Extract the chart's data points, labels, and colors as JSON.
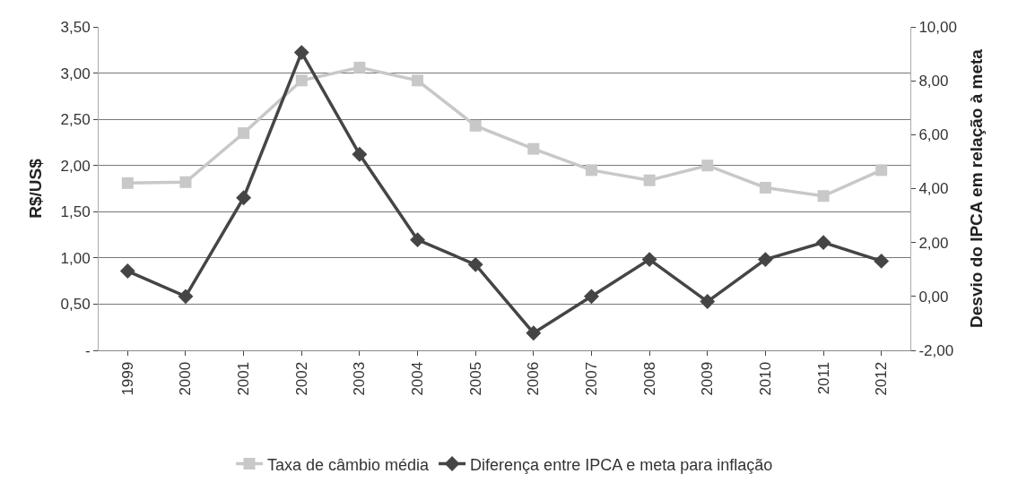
{
  "chart_data": {
    "type": "line",
    "ylabel": "R$/US$",
    "y2label": "Desvio do IPCA em relação à meta",
    "categories": [
      "1999",
      "2000",
      "2001",
      "2002",
      "2003",
      "2004",
      "2005",
      "2006",
      "2007",
      "2008",
      "2009",
      "2010",
      "2011",
      "2012"
    ],
    "series": [
      {
        "name": "Taxa de câmbio média",
        "color": "#c8c8c8",
        "marker": "square",
        "values": [
          1.81,
          1.82,
          2.35,
          2.92,
          3.06,
          2.92,
          2.43,
          2.18,
          1.95,
          1.84,
          2.0,
          1.76,
          1.67,
          1.95
        ]
      },
      {
        "name": "Diferença entre IPCA e meta para inflação",
        "color": "#454545",
        "marker": "diamond",
        "axis": "y2",
        "values": [
          0.94,
          0.0,
          3.66,
          9.05,
          5.27,
          2.1,
          1.18,
          -1.36,
          0.0,
          1.37,
          -0.19,
          1.37,
          2.0,
          1.31
        ]
      }
    ],
    "ylim": [
      0,
      3.5
    ],
    "yticks": [
      {
        "value": 0,
        "label": "-"
      },
      {
        "value": 0.5,
        "label": "0,50"
      },
      {
        "value": 1,
        "label": "1,00"
      },
      {
        "value": 1.5,
        "label": "1,50"
      },
      {
        "value": 2,
        "label": "2,00"
      },
      {
        "value": 2.5,
        "label": "2,50"
      },
      {
        "value": 3,
        "label": "3,00"
      },
      {
        "value": 3.5,
        "label": "3,50"
      }
    ],
    "y2lim": [
      -2,
      10
    ],
    "y2ticks": [
      {
        "value": -2,
        "label": "-2,00"
      },
      {
        "value": 0,
        "label": "0,00"
      },
      {
        "value": 2,
        "label": "2,00"
      },
      {
        "value": 4,
        "label": "4,00"
      },
      {
        "value": 6,
        "label": "6,00"
      },
      {
        "value": 8,
        "label": "8,00"
      },
      {
        "value": 10,
        "label": "10,00"
      }
    ],
    "grid": "y",
    "legend": "bottom"
  }
}
